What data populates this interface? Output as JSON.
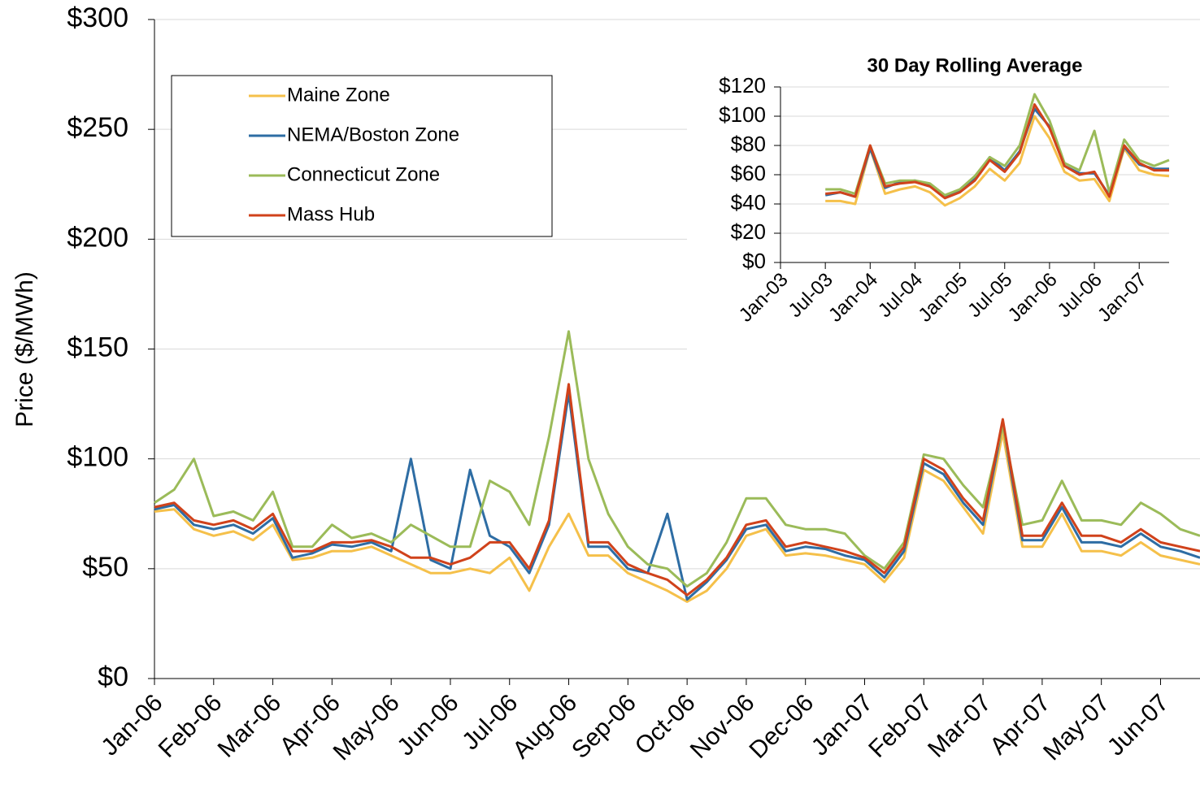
{
  "chart_data": [
    {
      "type": "line",
      "y_label": "Price ($/MWh)",
      "legend": "upper left",
      "grid": true,
      "categories": [
        "Jan-06",
        null,
        null,
        "Feb-06",
        null,
        null,
        "Mar-06",
        null,
        null,
        "Apr-06",
        null,
        null,
        "May-06",
        null,
        null,
        "Jun-06",
        null,
        null,
        "Jul-06",
        null,
        null,
        "Aug-06",
        null,
        null,
        "Sep-06",
        null,
        null,
        "Oct-06",
        null,
        null,
        "Nov-06",
        null,
        null,
        "Dec-06",
        null,
        null,
        "Jan-07",
        null,
        null,
        "Feb-07",
        null,
        null,
        "Mar-07",
        null,
        null,
        "Apr-07",
        null,
        null,
        "May-07",
        null,
        null,
        "Jun-07",
        null,
        null
      ],
      "ylim": [
        0,
        300
      ],
      "yticks": [
        {
          "value": 0,
          "label": "$0"
        },
        {
          "value": 50,
          "label": "$50"
        },
        {
          "value": 100,
          "label": "$100"
        },
        {
          "value": 150,
          "label": "$150"
        },
        {
          "value": 200,
          "label": "$200"
        },
        {
          "value": 250,
          "label": "$250"
        },
        {
          "value": 300,
          "label": "$300"
        }
      ],
      "series": [
        {
          "name": "Maine Zone",
          "color": "#f5c04a",
          "values": [
            76,
            77,
            68,
            65,
            67,
            63,
            70,
            54,
            55,
            58,
            58,
            60,
            56,
            52,
            48,
            48,
            50,
            48,
            55,
            40,
            60,
            75,
            56,
            56,
            48,
            44,
            40,
            35,
            40,
            50,
            65,
            68,
            56,
            57,
            56,
            54,
            52,
            44,
            55,
            95,
            90,
            78,
            66,
            112,
            60,
            60,
            75,
            58,
            58,
            56,
            62,
            56,
            54,
            52
          ]
        },
        {
          "name": "NEMA/Boston Zone",
          "color": "#2e6da4",
          "values": [
            77,
            79,
            70,
            68,
            70,
            66,
            73,
            55,
            57,
            61,
            60,
            62,
            58,
            100,
            54,
            50,
            95,
            65,
            60,
            48,
            70,
            130,
            60,
            60,
            50,
            48,
            75,
            36,
            44,
            54,
            68,
            70,
            58,
            60,
            59,
            56,
            54,
            46,
            58,
            98,
            93,
            80,
            70,
            116,
            63,
            63,
            78,
            62,
            62,
            60,
            66,
            60,
            58,
            55
          ]
        },
        {
          "name": "Connecticut Zone",
          "color": "#9bbb59",
          "values": [
            80,
            86,
            100,
            74,
            76,
            72,
            85,
            60,
            60,
            70,
            64,
            66,
            62,
            70,
            65,
            60,
            60,
            90,
            85,
            70,
            110,
            158,
            100,
            75,
            60,
            52,
            50,
            42,
            48,
            62,
            82,
            82,
            70,
            68,
            68,
            66,
            56,
            50,
            62,
            102,
            100,
            88,
            78,
            115,
            70,
            72,
            90,
            72,
            72,
            70,
            80,
            75,
            68,
            65
          ]
        },
        {
          "name": "Mass Hub",
          "color": "#d0421b",
          "values": [
            78,
            80,
            72,
            70,
            72,
            68,
            75,
            58,
            58,
            62,
            62,
            63,
            60,
            55,
            55,
            52,
            55,
            62,
            62,
            50,
            72,
            134,
            62,
            62,
            52,
            48,
            45,
            38,
            45,
            55,
            70,
            72,
            60,
            62,
            60,
            58,
            55,
            48,
            60,
            100,
            95,
            82,
            72,
            118,
            65,
            65,
            80,
            65,
            65,
            62,
            68,
            62,
            60,
            58
          ]
        }
      ]
    },
    {
      "type": "line",
      "title": "30 Day Rolling Average",
      "grid": true,
      "categories": [
        "Jan-03",
        null,
        null,
        "Jul-03",
        null,
        null,
        "Jan-04",
        null,
        null,
        "Jul-04",
        null,
        null,
        "Jan-05",
        null,
        null,
        "Jul-05",
        null,
        null,
        "Jan-06",
        null,
        null,
        "Jul-06",
        null,
        null,
        "Jan-07",
        null,
        null
      ],
      "ylim": [
        0,
        120
      ],
      "yticks": [
        {
          "value": 0,
          "label": "$0"
        },
        {
          "value": 20,
          "label": "$20"
        },
        {
          "value": 40,
          "label": "$40"
        },
        {
          "value": 60,
          "label": "$60"
        },
        {
          "value": 80,
          "label": "$80"
        },
        {
          "value": 100,
          "label": "$100"
        },
        {
          "value": 120,
          "label": "$120"
        }
      ],
      "series": [
        {
          "name": "Maine Zone",
          "color": "#f5c04a",
          "values": [
            null,
            null,
            null,
            42,
            42,
            40,
            78,
            47,
            50,
            52,
            48,
            39,
            44,
            52,
            64,
            56,
            68,
            100,
            85,
            62,
            56,
            57,
            42,
            78,
            63,
            60,
            59
          ]
        },
        {
          "name": "NEMA/Boston Zone",
          "color": "#2e6da4",
          "values": [
            null,
            null,
            null,
            46,
            48,
            45,
            78,
            51,
            55,
            56,
            53,
            45,
            49,
            58,
            72,
            63,
            76,
            105,
            93,
            66,
            61,
            61,
            46,
            79,
            67,
            64,
            64
          ]
        },
        {
          "name": "Connecticut Zone",
          "color": "#9bbb59",
          "values": [
            null,
            null,
            null,
            50,
            50,
            47,
            80,
            54,
            56,
            56,
            54,
            46,
            50,
            59,
            72,
            66,
            80,
            115,
            97,
            68,
            63,
            90,
            48,
            84,
            70,
            66,
            70
          ]
        },
        {
          "name": "Mass Hub",
          "color": "#d0421b",
          "values": [
            null,
            null,
            null,
            47,
            48,
            45,
            80,
            52,
            54,
            55,
            52,
            44,
            48,
            56,
            70,
            62,
            75,
            108,
            92,
            66,
            60,
            62,
            45,
            80,
            68,
            63,
            63
          ]
        }
      ]
    }
  ]
}
